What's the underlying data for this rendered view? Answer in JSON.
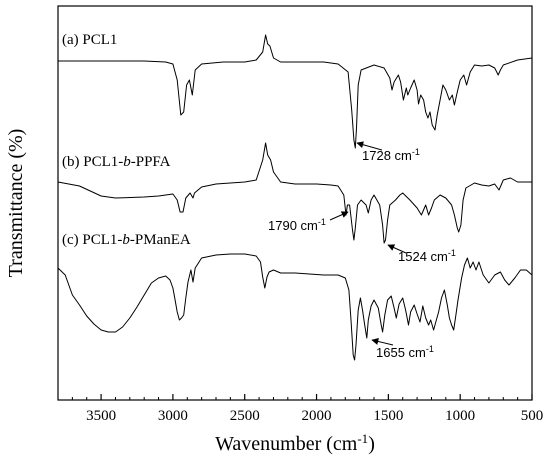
{
  "chart_data": {
    "type": "line",
    "xlabel": "Wavenumber (cm",
    "xlabel_sup": "-1",
    "xlabel_end": ")",
    "ylabel": "Transmittance (%)",
    "xlim": [
      3800,
      500
    ],
    "x_reversed": true,
    "xticks": [
      3500,
      3000,
      2500,
      2000,
      1500,
      1000,
      500
    ],
    "xtick_labels": [
      "3500",
      "3000",
      "2500",
      "2000",
      "1500",
      "1000",
      "500"
    ],
    "y_ticks_labeled": false,
    "series": [
      {
        "prefix": "(a) PCL1",
        "italic_part": "",
        "suffix": "",
        "points": [
          [
            3800,
            61
          ],
          [
            3600,
            61
          ],
          [
            3400,
            61
          ],
          [
            3200,
            61
          ],
          [
            3050,
            62
          ],
          [
            3000,
            64
          ],
          [
            2970,
            80
          ],
          [
            2945,
            115
          ],
          [
            2925,
            112
          ],
          [
            2905,
            85
          ],
          [
            2885,
            80
          ],
          [
            2865,
            95
          ],
          [
            2845,
            70
          ],
          [
            2800,
            64
          ],
          [
            2650,
            62
          ],
          [
            2500,
            62
          ],
          [
            2420,
            60
          ],
          [
            2375,
            52
          ],
          [
            2355,
            35
          ],
          [
            2340,
            44
          ],
          [
            2325,
            46
          ],
          [
            2300,
            58
          ],
          [
            2250,
            62
          ],
          [
            2100,
            62
          ],
          [
            1950,
            62
          ],
          [
            1850,
            64
          ],
          [
            1780,
            72
          ],
          [
            1755,
            110
          ],
          [
            1740,
            140
          ],
          [
            1730,
            148
          ],
          [
            1722,
            128
          ],
          [
            1710,
            85
          ],
          [
            1690,
            70
          ],
          [
            1600,
            65
          ],
          [
            1530,
            68
          ],
          [
            1490,
            78
          ],
          [
            1475,
            90
          ],
          [
            1460,
            82
          ],
          [
            1430,
            75
          ],
          [
            1415,
            82
          ],
          [
            1395,
            100
          ],
          [
            1375,
            88
          ],
          [
            1365,
            95
          ],
          [
            1345,
            88
          ],
          [
            1320,
            80
          ],
          [
            1300,
            90
          ],
          [
            1290,
            104
          ],
          [
            1275,
            95
          ],
          [
            1255,
            100
          ],
          [
            1240,
            112
          ],
          [
            1225,
            118
          ],
          [
            1210,
            112
          ],
          [
            1195,
            125
          ],
          [
            1175,
            130
          ],
          [
            1160,
            115
          ],
          [
            1140,
            100
          ],
          [
            1120,
            85
          ],
          [
            1100,
            90
          ],
          [
            1075,
            100
          ],
          [
            1055,
            95
          ],
          [
            1040,
            105
          ],
          [
            1020,
            92
          ],
          [
            1000,
            80
          ],
          [
            975,
            75
          ],
          [
            955,
            85
          ],
          [
            930,
            72
          ],
          [
            900,
            65
          ],
          [
            850,
            66
          ],
          [
            800,
            65
          ],
          [
            760,
            68
          ],
          [
            735,
            75
          ],
          [
            720,
            70
          ],
          [
            700,
            65
          ],
          [
            600,
            60
          ],
          [
            500,
            58
          ]
        ]
      },
      {
        "prefix": "(b) PCL1-",
        "italic_part": "b",
        "suffix": "-PPFA",
        "points": [
          [
            3800,
            182
          ],
          [
            3650,
            186
          ],
          [
            3500,
            196
          ],
          [
            3400,
            198
          ],
          [
            3200,
            197
          ],
          [
            3100,
            196
          ],
          [
            3000,
            194
          ],
          [
            2970,
            200
          ],
          [
            2950,
            212
          ],
          [
            2930,
            212
          ],
          [
            2910,
            198
          ],
          [
            2880,
            193
          ],
          [
            2860,
            198
          ],
          [
            2850,
            193
          ],
          [
            2800,
            187
          ],
          [
            2700,
            184
          ],
          [
            2500,
            182
          ],
          [
            2420,
            180
          ],
          [
            2375,
            160
          ],
          [
            2355,
            143
          ],
          [
            2340,
            155
          ],
          [
            2320,
            160
          ],
          [
            2300,
            172
          ],
          [
            2250,
            182
          ],
          [
            2150,
            184
          ],
          [
            2000,
            184
          ],
          [
            1900,
            185
          ],
          [
            1850,
            186
          ],
          [
            1810,
            195
          ],
          [
            1795,
            215
          ],
          [
            1785,
            205
          ],
          [
            1770,
            205
          ],
          [
            1750,
            230
          ],
          [
            1740,
            240
          ],
          [
            1730,
            228
          ],
          [
            1715,
            205
          ],
          [
            1690,
            200
          ],
          [
            1655,
            205
          ],
          [
            1640,
            213
          ],
          [
            1620,
            200
          ],
          [
            1600,
            195
          ],
          [
            1560,
            205
          ],
          [
            1540,
            225
          ],
          [
            1530,
            243
          ],
          [
            1520,
            240
          ],
          [
            1505,
            220
          ],
          [
            1490,
            205
          ],
          [
            1450,
            200
          ],
          [
            1420,
            195
          ],
          [
            1400,
            193
          ],
          [
            1350,
            200
          ],
          [
            1300,
            208
          ],
          [
            1270,
            215
          ],
          [
            1240,
            205
          ],
          [
            1220,
            215
          ],
          [
            1200,
            208
          ],
          [
            1180,
            200
          ],
          [
            1140,
            195
          ],
          [
            1100,
            198
          ],
          [
            1060,
            205
          ],
          [
            1040,
            215
          ],
          [
            1020,
            228
          ],
          [
            1010,
            232
          ],
          [
            995,
            225
          ],
          [
            980,
            200
          ],
          [
            960,
            188
          ],
          [
            900,
            183
          ],
          [
            850,
            185
          ],
          [
            800,
            186
          ],
          [
            760,
            184
          ],
          [
            730,
            190
          ],
          [
            700,
            180
          ],
          [
            650,
            178
          ],
          [
            600,
            182
          ],
          [
            500,
            182
          ]
        ]
      },
      {
        "prefix": "(c) PCL1-",
        "italic_part": "b",
        "suffix": "-PManEA",
        "points": [
          [
            3800,
            268
          ],
          [
            3750,
            275
          ],
          [
            3700,
            295
          ],
          [
            3650,
            305
          ],
          [
            3600,
            316
          ],
          [
            3550,
            324
          ],
          [
            3500,
            330
          ],
          [
            3450,
            332
          ],
          [
            3400,
            332
          ],
          [
            3350,
            327
          ],
          [
            3300,
            318
          ],
          [
            3250,
            307
          ],
          [
            3200,
            295
          ],
          [
            3150,
            283
          ],
          [
            3100,
            278
          ],
          [
            3050,
            276
          ],
          [
            3020,
            280
          ],
          [
            3000,
            288
          ],
          [
            2985,
            300
          ],
          [
            2970,
            312
          ],
          [
            2955,
            320
          ],
          [
            2940,
            318
          ],
          [
            2925,
            315
          ],
          [
            2910,
            298
          ],
          [
            2895,
            282
          ],
          [
            2875,
            270
          ],
          [
            2860,
            282
          ],
          [
            2845,
            268
          ],
          [
            2800,
            258
          ],
          [
            2700,
            255
          ],
          [
            2600,
            254
          ],
          [
            2500,
            254
          ],
          [
            2420,
            256
          ],
          [
            2390,
            262
          ],
          [
            2375,
            277
          ],
          [
            2360,
            288
          ],
          [
            2345,
            277
          ],
          [
            2330,
            272
          ],
          [
            2300,
            270
          ],
          [
            2250,
            273
          ],
          [
            2150,
            273
          ],
          [
            2050,
            274
          ],
          [
            1950,
            275
          ],
          [
            1850,
            275
          ],
          [
            1800,
            278
          ],
          [
            1775,
            290
          ],
          [
            1760,
            320
          ],
          [
            1745,
            355
          ],
          [
            1735,
            360
          ],
          [
            1725,
            345
          ],
          [
            1710,
            310
          ],
          [
            1695,
            298
          ],
          [
            1680,
            310
          ],
          [
            1665,
            325
          ],
          [
            1650,
            338
          ],
          [
            1640,
            320
          ],
          [
            1620,
            306
          ],
          [
            1600,
            300
          ],
          [
            1570,
            308
          ],
          [
            1550,
            325
          ],
          [
            1540,
            332
          ],
          [
            1525,
            315
          ],
          [
            1505,
            300
          ],
          [
            1480,
            296
          ],
          [
            1460,
            308
          ],
          [
            1445,
            318
          ],
          [
            1425,
            304
          ],
          [
            1400,
            298
          ],
          [
            1380,
            310
          ],
          [
            1360,
            325
          ],
          [
            1345,
            312
          ],
          [
            1320,
            305
          ],
          [
            1300,
            314
          ],
          [
            1280,
            322
          ],
          [
            1260,
            306
          ],
          [
            1240,
            318
          ],
          [
            1220,
            325
          ],
          [
            1205,
            320
          ],
          [
            1185,
            330
          ],
          [
            1170,
            322
          ],
          [
            1150,
            312
          ],
          [
            1130,
            298
          ],
          [
            1110,
            290
          ],
          [
            1090,
            305
          ],
          [
            1075,
            318
          ],
          [
            1060,
            325
          ],
          [
            1045,
            330
          ],
          [
            1030,
            315
          ],
          [
            1015,
            300
          ],
          [
            990,
            278
          ],
          [
            970,
            265
          ],
          [
            950,
            258
          ],
          [
            930,
            268
          ],
          [
            910,
            262
          ],
          [
            890,
            270
          ],
          [
            870,
            262
          ],
          [
            840,
            275
          ],
          [
            800,
            283
          ],
          [
            760,
            275
          ],
          [
            720,
            272
          ],
          [
            690,
            280
          ],
          [
            660,
            285
          ],
          [
            620,
            278
          ],
          [
            580,
            270
          ],
          [
            540,
            270
          ],
          [
            500,
            275
          ]
        ]
      }
    ],
    "annotations": [
      {
        "text": "1728 cm",
        "sup": "-1",
        "x": 1728
      },
      {
        "text": "1790 cm",
        "sup": "-1",
        "x": 1790
      },
      {
        "text": "1524 cm",
        "sup": "-1",
        "x": 1524
      },
      {
        "text": "1655 cm",
        "sup": "-1",
        "x": 1655
      }
    ]
  }
}
